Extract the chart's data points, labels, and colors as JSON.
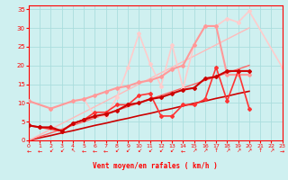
{
  "bg_color": "#cff0f0",
  "grid_color": "#aadddd",
  "xlabel": "Vent moyen/en rafales ( km/h )",
  "xlim": [
    0,
    23
  ],
  "ylim": [
    0,
    36
  ],
  "yticks": [
    0,
    5,
    10,
    15,
    20,
    25,
    30,
    35
  ],
  "xticks": [
    0,
    1,
    2,
    3,
    4,
    5,
    6,
    7,
    8,
    9,
    10,
    11,
    12,
    13,
    14,
    15,
    16,
    17,
    18,
    19,
    20,
    21,
    22,
    23
  ],
  "series": [
    {
      "x": [
        0,
        1,
        2,
        3,
        4,
        5,
        6,
        7,
        8,
        9,
        10,
        11,
        12,
        13,
        14,
        15,
        16,
        17,
        18,
        19,
        20
      ],
      "y": [
        0,
        0.7,
        1.3,
        2.0,
        2.6,
        3.3,
        4.0,
        4.6,
        5.3,
        5.9,
        6.6,
        7.2,
        7.9,
        8.5,
        9.2,
        9.9,
        10.5,
        11.2,
        11.8,
        12.5,
        13.1
      ],
      "color": "#cc0000",
      "lw": 1.2,
      "marker": null,
      "ms": 0,
      "zorder": 2
    },
    {
      "x": [
        0,
        1,
        2,
        3,
        4,
        5,
        6,
        7,
        8,
        9,
        10,
        11,
        12,
        13,
        14,
        15,
        16,
        17,
        18,
        19,
        20
      ],
      "y": [
        0,
        1.0,
        2.0,
        3.0,
        4.0,
        5.0,
        6.0,
        7.0,
        8.0,
        9.0,
        10.0,
        11.0,
        12.0,
        13.0,
        14.0,
        15.0,
        16.0,
        17.0,
        18.0,
        19.0,
        20.0
      ],
      "color": "#ff6666",
      "lw": 1.0,
      "marker": null,
      "ms": 0,
      "zorder": 2
    },
    {
      "x": [
        0,
        1,
        2,
        3,
        4,
        5,
        6,
        7,
        8,
        9,
        10,
        11,
        12,
        13,
        14,
        15,
        16,
        17,
        18,
        19,
        20
      ],
      "y": [
        0,
        1.5,
        3.0,
        4.5,
        6.0,
        7.5,
        9.0,
        10.5,
        12.0,
        13.5,
        15.0,
        16.5,
        18.0,
        19.5,
        21.0,
        22.5,
        24.0,
        25.5,
        27.0,
        28.5,
        30.0
      ],
      "color": "#ffbbbb",
      "lw": 1.0,
      "marker": null,
      "ms": 0,
      "zorder": 2
    },
    {
      "x": [
        0,
        1,
        2,
        3,
        4,
        5,
        6,
        7,
        8,
        9,
        10,
        11,
        12,
        13,
        14,
        15,
        16,
        17,
        18,
        19,
        20
      ],
      "y": [
        4.0,
        3.5,
        3.5,
        2.5,
        4.5,
        5.5,
        6.5,
        7.0,
        8.0,
        9.5,
        10.0,
        11.0,
        11.5,
        12.5,
        13.5,
        14.0,
        16.5,
        17.0,
        18.5,
        18.5,
        18.5
      ],
      "color": "#cc0000",
      "lw": 1.5,
      "marker": "D",
      "ms": 2.0,
      "zorder": 5
    },
    {
      "x": [
        0,
        1,
        3,
        4,
        5,
        6,
        7,
        8,
        9,
        10,
        11,
        12,
        13,
        14,
        15,
        16,
        17,
        18,
        19,
        20
      ],
      "y": [
        4.0,
        3.5,
        2.5,
        4.5,
        5.5,
        7.5,
        7.5,
        9.5,
        9.5,
        12.0,
        12.5,
        6.5,
        6.5,
        9.5,
        9.5,
        11.0,
        19.5,
        10.5,
        18.5,
        8.5
      ],
      "color": "#ff3333",
      "lw": 1.2,
      "marker": "D",
      "ms": 2.0,
      "zorder": 4
    },
    {
      "x": [
        0,
        2,
        4,
        5,
        6,
        7,
        8,
        9,
        10,
        11,
        12,
        13,
        14,
        15,
        16,
        17,
        18,
        19,
        20
      ],
      "y": [
        10.5,
        8.5,
        10.5,
        11.0,
        12.0,
        13.0,
        14.0,
        14.5,
        15.5,
        16.0,
        17.0,
        19.0,
        20.0,
        25.5,
        30.5,
        30.5,
        17.5,
        17.5,
        17.5
      ],
      "color": "#ff9999",
      "lw": 1.5,
      "marker": "D",
      "ms": 2.0,
      "zorder": 3
    },
    {
      "x": [
        0,
        2,
        4,
        5,
        6,
        7,
        8,
        9,
        10,
        11,
        12,
        13,
        14,
        15,
        16,
        17,
        18,
        19,
        20,
        23
      ],
      "y": [
        10.5,
        8.5,
        10.5,
        11.0,
        6.5,
        6.5,
        11.5,
        19.5,
        28.5,
        20.5,
        14.5,
        25.5,
        14.0,
        25.5,
        30.5,
        30.5,
        32.5,
        31.5,
        34.5,
        19.5
      ],
      "color": "#ffcccc",
      "lw": 1.2,
      "marker": "D",
      "ms": 2.0,
      "zorder": 2
    }
  ],
  "arrow_row": [
    "←",
    "←",
    "↙",
    "↙",
    "↖",
    "←",
    "←",
    "←",
    "↙",
    "↙",
    "↙",
    "↙",
    "↙",
    "↙",
    "←",
    "↗",
    "↗",
    "↑",
    "↗",
    "↗",
    "↗",
    "↑",
    "↗",
    "→"
  ]
}
